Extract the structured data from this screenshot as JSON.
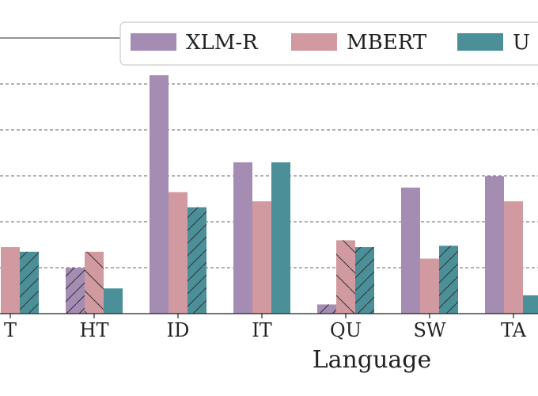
{
  "chart_data": {
    "type": "bar",
    "xlabel": "Language",
    "categories": [
      "T",
      "HT",
      "ID",
      "IT",
      "QU",
      "SW",
      "TA"
    ],
    "series": [
      {
        "name": "XLM-R",
        "color": "#a48cb3",
        "hatch": [
          false,
          true,
          false,
          false,
          true,
          false,
          false
        ],
        "values": [
          0.0,
          1.0,
          5.2,
          3.3,
          0.2,
          2.75,
          3.0
        ]
      },
      {
        "name": "MBERT",
        "color": "#d19aa0",
        "hatch": [
          false,
          true,
          false,
          false,
          true,
          false,
          false
        ],
        "values": [
          1.45,
          1.35,
          2.65,
          2.45,
          1.6,
          1.2,
          2.45
        ]
      },
      {
        "name": "U",
        "color": "#4b8f98",
        "hatch": [
          true,
          false,
          true,
          false,
          true,
          true,
          false
        ],
        "values": [
          1.35,
          0.55,
          2.32,
          3.3,
          1.45,
          1.48,
          0.4
        ]
      }
    ],
    "ylim": [
      0,
      5.2
    ],
    "grid": "horizontal dashed",
    "legend_position": "top"
  }
}
